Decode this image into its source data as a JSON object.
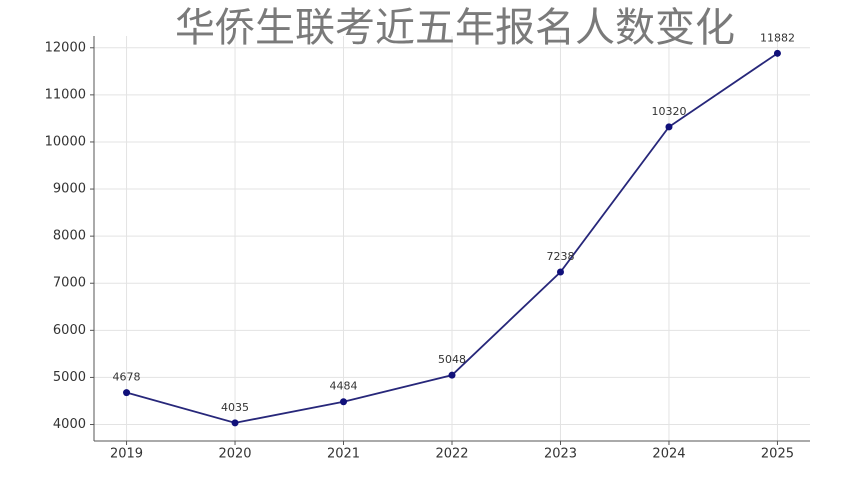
{
  "chart_data": {
    "type": "line",
    "title": "华侨生联考近五年报名人数变化",
    "x": [
      2019,
      2020,
      2021,
      2022,
      2023,
      2024,
      2025
    ],
    "values": [
      4678,
      4035,
      4484,
      5048,
      7238,
      10320,
      11882
    ],
    "color": "#27277a",
    "marker_color": "#10107a",
    "xlim": [
      2018.7,
      2025.3
    ],
    "xticks": [
      2019,
      2020,
      2021,
      2022,
      2023,
      2024,
      2025
    ],
    "ylim": [
      3650,
      12250
    ],
    "yticks": [
      4000,
      5000,
      6000,
      7000,
      8000,
      9000,
      10000,
      11000,
      12000
    ],
    "grid": true
  }
}
